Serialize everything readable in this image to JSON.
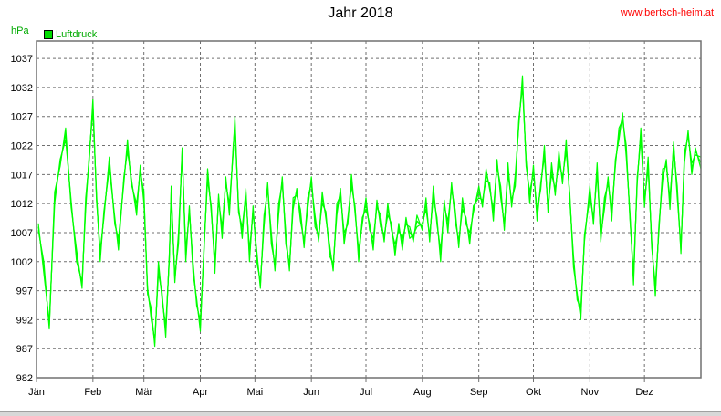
{
  "chart_data": {
    "type": "line",
    "title": "Jahr 2018",
    "source": "www.bertsch-heim.at",
    "unit_label": "hPa",
    "series": [
      {
        "name": "Luftdruck",
        "color": "#00ff00"
      }
    ],
    "ylim": [
      982,
      1040
    ],
    "yticks": [
      982,
      987,
      992,
      997,
      1002,
      1007,
      1012,
      1017,
      1022,
      1027,
      1032,
      1037
    ],
    "xlim_days": [
      0,
      365
    ],
    "months": [
      "Jän",
      "Feb",
      "Mär",
      "Apr",
      "Mai",
      "Jun",
      "Jul",
      "Aug",
      "Sep",
      "Okt",
      "Nov",
      "Dez"
    ],
    "month_start_days": [
      0,
      31,
      59,
      90,
      120,
      151,
      181,
      212,
      243,
      273,
      304,
      334
    ],
    "grid": true,
    "legend_position": "top-left",
    "daily": [
      [
        1,
        1008,
        1
      ],
      [
        4,
        1001,
        1
      ],
      [
        7,
        991,
        1
      ],
      [
        10,
        1013,
        1
      ],
      [
        13,
        1019,
        1
      ],
      [
        16,
        1024,
        1
      ],
      [
        19,
        1012,
        1
      ],
      [
        22,
        1003,
        1
      ],
      [
        25,
        998,
        1
      ],
      [
        27,
        1012,
        1
      ],
      [
        29,
        1020,
        1
      ],
      [
        31,
        1029,
        1
      ],
      [
        33,
        1013,
        1
      ],
      [
        35,
        1003,
        1
      ],
      [
        37,
        1010,
        1
      ],
      [
        40,
        1019,
        1
      ],
      [
        43,
        1009,
        1
      ],
      [
        45,
        1005,
        1
      ],
      [
        48,
        1016,
        1
      ],
      [
        50,
        1022,
        1
      ],
      [
        52,
        1016,
        1
      ],
      [
        55,
        1011,
        1
      ],
      [
        57,
        1018,
        1
      ],
      [
        59,
        1013,
        1
      ],
      [
        61,
        997,
        1
      ],
      [
        63,
        993,
        1
      ],
      [
        65,
        988,
        1
      ],
      [
        67,
        1001,
        1
      ],
      [
        69,
        996,
        1
      ],
      [
        71,
        990,
        1
      ],
      [
        73,
        1003,
        1
      ],
      [
        74,
        1014,
        1
      ],
      [
        76,
        999,
        1
      ],
      [
        78,
        1006,
        1
      ],
      [
        80,
        1021,
        1
      ],
      [
        82,
        1003,
        1
      ],
      [
        84,
        1011,
        1
      ],
      [
        86,
        1001,
        1
      ],
      [
        88,
        995,
        1
      ],
      [
        90,
        991,
        1
      ],
      [
        92,
        1004,
        1
      ],
      [
        94,
        1017,
        1
      ],
      [
        96,
        1011,
        1
      ],
      [
        98,
        1001,
        1
      ],
      [
        100,
        1013,
        1
      ],
      [
        102,
        1007,
        1
      ],
      [
        104,
        1016,
        1
      ],
      [
        106,
        1011,
        1
      ],
      [
        108,
        1021,
        1
      ],
      [
        109,
        1026,
        1
      ],
      [
        111,
        1011,
        1
      ],
      [
        113,
        1007,
        1
      ],
      [
        115,
        1014,
        1
      ],
      [
        117,
        1003,
        1
      ],
      [
        119,
        1011,
        1
      ],
      [
        121,
        1003,
        1
      ],
      [
        123,
        998,
        1
      ],
      [
        125,
        1009,
        1
      ],
      [
        127,
        1015,
        1
      ],
      [
        129,
        1006,
        1
      ],
      [
        131,
        1001,
        1
      ],
      [
        133,
        1011,
        1
      ],
      [
        135,
        1016,
        1
      ],
      [
        137,
        1006,
        1
      ],
      [
        139,
        1001,
        1
      ],
      [
        141,
        1012,
        1
      ],
      [
        143,
        1014,
        1
      ],
      [
        145,
        1010,
        1
      ],
      [
        147,
        1005,
        1
      ],
      [
        149,
        1012,
        1
      ],
      [
        151,
        1016,
        1
      ],
      [
        153,
        1009,
        1
      ],
      [
        155,
        1006,
        1
      ],
      [
        157,
        1013,
        1
      ],
      [
        159,
        1010,
        1
      ],
      [
        161,
        1004,
        1
      ],
      [
        163,
        1001,
        1
      ],
      [
        165,
        1011,
        1
      ],
      [
        167,
        1014,
        1
      ],
      [
        169,
        1006,
        1
      ],
      [
        171,
        1009,
        1
      ],
      [
        173,
        1016,
        1
      ],
      [
        175,
        1011,
        1
      ],
      [
        177,
        1003,
        1
      ],
      [
        179,
        1009,
        1
      ],
      [
        181,
        1012,
        1
      ],
      [
        183,
        1008,
        1
      ],
      [
        185,
        1005,
        1
      ],
      [
        187,
        1012,
        1
      ],
      [
        189,
        1009,
        1
      ],
      [
        191,
        1006,
        1
      ],
      [
        193,
        1011,
        1
      ],
      [
        195,
        1008,
        1
      ],
      [
        197,
        1004,
        1
      ],
      [
        199,
        1008,
        1
      ],
      [
        201,
        1005,
        1
      ],
      [
        203,
        1009,
        1
      ],
      [
        205,
        1007,
        1
      ],
      [
        207,
        1006,
        1
      ],
      [
        209,
        1009,
        1
      ],
      [
        212,
        1008,
        1
      ],
      [
        214,
        1012,
        1
      ],
      [
        216,
        1006,
        1
      ],
      [
        218,
        1014,
        1
      ],
      [
        220,
        1009,
        1
      ],
      [
        222,
        1003,
        1
      ],
      [
        224,
        1012,
        1
      ],
      [
        226,
        1008,
        1
      ],
      [
        228,
        1015,
        1
      ],
      [
        230,
        1010,
        1
      ],
      [
        232,
        1005,
        1
      ],
      [
        234,
        1012,
        1
      ],
      [
        236,
        1009,
        1
      ],
      [
        238,
        1006,
        1
      ],
      [
        240,
        1011,
        1
      ],
      [
        243,
        1014,
        1
      ],
      [
        245,
        1012,
        1
      ],
      [
        247,
        1017,
        1
      ],
      [
        249,
        1015,
        1
      ],
      [
        251,
        1010,
        1
      ],
      [
        253,
        1019,
        1
      ],
      [
        255,
        1014,
        1
      ],
      [
        257,
        1008,
        1
      ],
      [
        259,
        1018,
        1
      ],
      [
        261,
        1012,
        1
      ],
      [
        263,
        1016,
        1
      ],
      [
        265,
        1026,
        1
      ],
      [
        267,
        1033,
        1
      ],
      [
        269,
        1019,
        1
      ],
      [
        271,
        1013,
        1
      ],
      [
        273,
        1018,
        1
      ],
      [
        275,
        1010,
        1
      ],
      [
        277,
        1015,
        1
      ],
      [
        279,
        1021,
        1
      ],
      [
        281,
        1011,
        1
      ],
      [
        283,
        1018,
        1
      ],
      [
        285,
        1014,
        1
      ],
      [
        287,
        1020,
        1
      ],
      [
        289,
        1016,
        1
      ],
      [
        291,
        1022,
        1
      ],
      [
        293,
        1013,
        1
      ],
      [
        295,
        1002,
        1
      ],
      [
        297,
        996,
        1
      ],
      [
        299,
        993,
        1
      ],
      [
        301,
        1006,
        1
      ],
      [
        304,
        1014,
        1
      ],
      [
        306,
        1009,
        1
      ],
      [
        308,
        1018,
        1
      ],
      [
        310,
        1006,
        1
      ],
      [
        312,
        1012,
        1
      ],
      [
        314,
        1016,
        1
      ],
      [
        316,
        1010,
        1
      ],
      [
        318,
        1019,
        1
      ],
      [
        320,
        1024,
        1
      ],
      [
        322,
        1027,
        1
      ],
      [
        324,
        1021,
        1
      ],
      [
        326,
        1010,
        1
      ],
      [
        328,
        999,
        1
      ],
      [
        330,
        1016,
        1
      ],
      [
        332,
        1024,
        1
      ],
      [
        334,
        1012,
        1
      ],
      [
        336,
        1019,
        1
      ],
      [
        338,
        1005,
        1
      ],
      [
        340,
        997,
        1
      ],
      [
        342,
        1008,
        1
      ],
      [
        344,
        1017,
        1
      ],
      [
        346,
        1019,
        1
      ],
      [
        348,
        1012,
        1
      ],
      [
        350,
        1022,
        1
      ],
      [
        352,
        1014,
        1
      ],
      [
        354,
        1004,
        1
      ],
      [
        356,
        1020,
        1
      ],
      [
        358,
        1024,
        1
      ],
      [
        360,
        1018,
        1
      ],
      [
        362,
        1021,
        1
      ],
      [
        365,
        1019,
        1
      ]
    ]
  }
}
